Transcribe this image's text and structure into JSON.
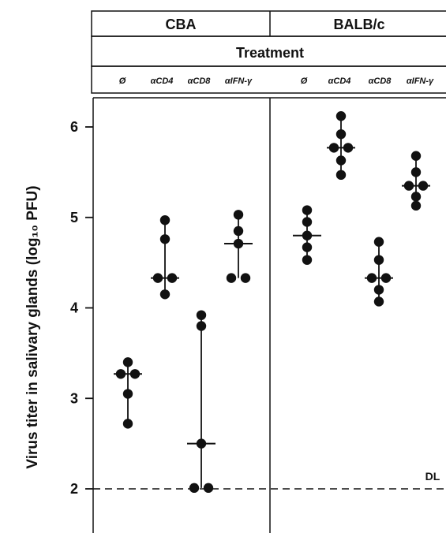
{
  "chart_data": {
    "type": "scatter",
    "ylabel": "Virus titer in salivary glands (log₁₀ PFU)",
    "header_treatment": "Treatment",
    "ylim": [
      1.7,
      6.4
    ],
    "yticks": [
      2,
      3,
      4,
      5,
      6
    ],
    "ytick_labels": [
      "2",
      "3",
      "4",
      "5",
      "6"
    ],
    "reference_line": {
      "y": 2.0,
      "label": "DL",
      "style": "dashed"
    },
    "panels": [
      {
        "strain": "CBA",
        "groups": [
          {
            "treatment": "Ø",
            "median": 3.27,
            "points": [
              3.4,
              3.27,
              3.27,
              3.05,
              2.72
            ]
          },
          {
            "treatment": "αCD4",
            "median": 4.33,
            "points": [
              4.97,
              4.76,
              4.33,
              4.33,
              4.15
            ]
          },
          {
            "treatment": "αCD8",
            "median": 2.5,
            "points": [
              3.92,
              3.8,
              2.5,
              2.01,
              2.01
            ]
          },
          {
            "treatment": "αIFN-γ",
            "median": 4.71,
            "points": [
              5.03,
              4.85,
              4.71,
              4.33,
              4.33
            ]
          }
        ]
      },
      {
        "strain": "BALB/c",
        "groups": [
          {
            "treatment": "Ø",
            "median": 4.8,
            "points": [
              5.08,
              4.95,
              4.8,
              4.67,
              4.53
            ]
          },
          {
            "treatment": "αCD4",
            "median": 5.77,
            "points": [
              6.12,
              5.92,
              5.77,
              5.77,
              5.63,
              5.47
            ]
          },
          {
            "treatment": "αCD8",
            "median": 4.33,
            "points": [
              4.73,
              4.53,
              4.33,
              4.33,
              4.2,
              4.07
            ]
          },
          {
            "treatment": "αIFN-γ",
            "median": 5.35,
            "points": [
              5.68,
              5.5,
              5.35,
              5.35,
              5.23,
              5.13
            ]
          }
        ]
      }
    ]
  }
}
